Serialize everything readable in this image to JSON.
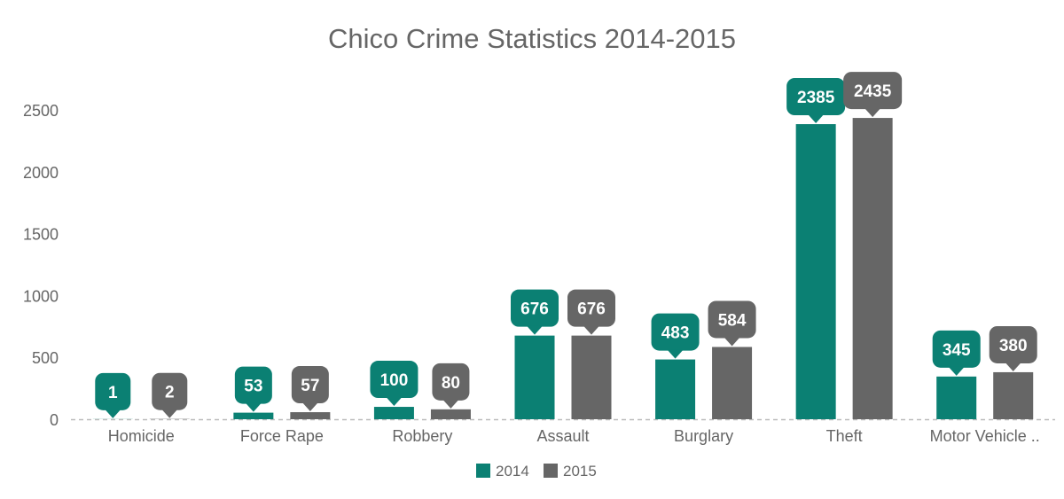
{
  "chart_data": {
    "type": "bar",
    "title": "Chico Crime Statistics 2014-2015",
    "xlabel": "",
    "ylabel": "",
    "categories": [
      "Homicide",
      "Force Rape",
      "Robbery",
      "Assault",
      "Burglary",
      "Theft",
      "Motor Vehicle .."
    ],
    "series": [
      {
        "name": "2014",
        "color": "#0b8073",
        "values": [
          1,
          53,
          100,
          676,
          483,
          2385,
          345
        ]
      },
      {
        "name": "2015",
        "color": "#666666",
        "values": [
          2,
          57,
          80,
          676,
          584,
          2435,
          380
        ]
      }
    ],
    "yticks": [
      0,
      500,
      1000,
      1500,
      2000,
      2500
    ],
    "ylim": [
      0,
      2500
    ],
    "grid": false,
    "legend_position": "bottom-center",
    "data_labels": true
  }
}
